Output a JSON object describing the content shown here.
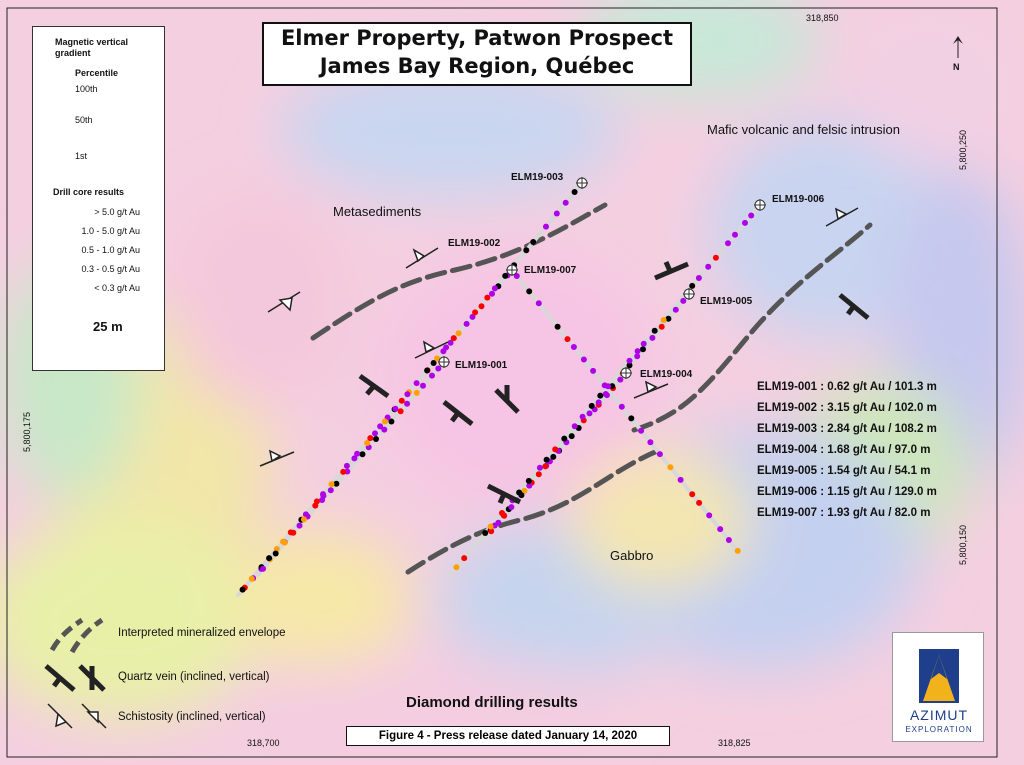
{
  "title": {
    "line1": "Elmer Property, Patwon Prospect",
    "line2": "James Bay Region, Québec"
  },
  "north_arrow": {
    "label": "N"
  },
  "coordinates": {
    "top_easting": "318,850",
    "bottom_easting_left": "318,700",
    "bottom_easting_right": "318,825",
    "right_northing_top": "5,800,250",
    "right_northing_bottom": "5,800,150",
    "left_northing": "5,800,175"
  },
  "legend": {
    "mag_title_1": "Magnetic vertical",
    "mag_title_2": "gradient",
    "percentile_label": "Percentile",
    "pct_high": "100th",
    "pct_mid": "50th",
    "pct_low": "1st",
    "drill_title": "Drill core results",
    "classes": [
      {
        "label": "> 5.0 g/t Au",
        "color": "#000000"
      },
      {
        "label": "1.0 - 5.0 g/t Au",
        "color": "#b000e8"
      },
      {
        "label": "0.5 - 1.0 g/t Au",
        "color": "#ff0000"
      },
      {
        "label": "0.3 - 0.5 g/t Au",
        "color": "#ffa000"
      },
      {
        "label": "< 0.3 g/t Au",
        "color": "#a8a8a8"
      }
    ],
    "scale_label": "25 m"
  },
  "geology_labels": {
    "metasediments": "Metasediments",
    "mafic": "Mafic volcanic and felsic intrusion",
    "gabbro": "Gabbro"
  },
  "drill_holes": [
    {
      "id": "ELM19-001"
    },
    {
      "id": "ELM19-002"
    },
    {
      "id": "ELM19-003"
    },
    {
      "id": "ELM19-004"
    },
    {
      "id": "ELM19-005"
    },
    {
      "id": "ELM19-006"
    },
    {
      "id": "ELM19-007"
    }
  ],
  "results": [
    "ELM19-001 : 0.62 g/t Au / 101.3 m",
    "ELM19-002 : 3.15 g/t Au / 102.0 m",
    "ELM19-003 : 2.84 g/t Au / 108.2 m",
    "ELM19-004 : 1.68 g/t Au / 97.0 m",
    "ELM19-005 : 1.54 g/t Au / 54.1 m",
    "ELM19-006 : 1.15 g/t Au / 129.0 m",
    "ELM19-007 : 1.93 g/t Au / 82.0 m"
  ],
  "bottom_legend": {
    "envelope": "Interpreted mineralized envelope",
    "quartz": "Quartz vein (inclined, vertical)",
    "schistosity": "Schistosity (inclined, vertical)"
  },
  "subtitle": "Diamond drilling results",
  "caption": "Figure 4 - Press release dated January 14, 2020",
  "logo": {
    "line1": "AZIMUT",
    "line2": "EXPLORATION"
  }
}
